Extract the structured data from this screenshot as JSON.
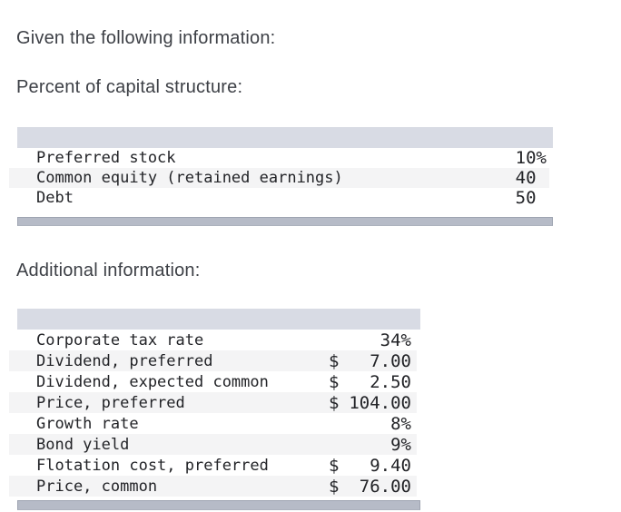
{
  "page": {
    "intro_heading": "Given the following information:",
    "capital_structure_heading": "Percent of capital structure:",
    "additional_info_heading": "Additional information:"
  },
  "capital_structure_table": {
    "rows": [
      {
        "label": "Preferred stock",
        "value": "10%"
      },
      {
        "label": "Common equity (retained earnings)",
        "value": "40 "
      },
      {
        "label": "Debt",
        "value": "50 "
      }
    ]
  },
  "additional_info_table": {
    "rows": [
      {
        "label": "Corporate tax rate",
        "currency": "",
        "value": "34%"
      },
      {
        "label": "Dividend, preferred",
        "currency": "$",
        "value": "7.00"
      },
      {
        "label": "Dividend, expected common",
        "currency": "$",
        "value": "2.50"
      },
      {
        "label": "Price, preferred",
        "currency": "$",
        "value": "104.00"
      },
      {
        "label": "Growth rate",
        "currency": "",
        "value": "8%"
      },
      {
        "label": "Bond yield",
        "currency": "",
        "value": "9%"
      },
      {
        "label": "Flotation cost, preferred",
        "currency": "$",
        "value": "9.40"
      },
      {
        "label": "Price, common",
        "currency": "$",
        "value": "76.00"
      }
    ]
  },
  "colors": {
    "page_background": "#ffffff",
    "heading_text": "#3d4046",
    "table_text": "#222327",
    "table_header_bg": "#d8dbe4",
    "row_stripe_bg": "#f4f4f5",
    "scrollbar_fill": "#b6bbc7",
    "scrollbar_border": "#9ea4b1"
  }
}
